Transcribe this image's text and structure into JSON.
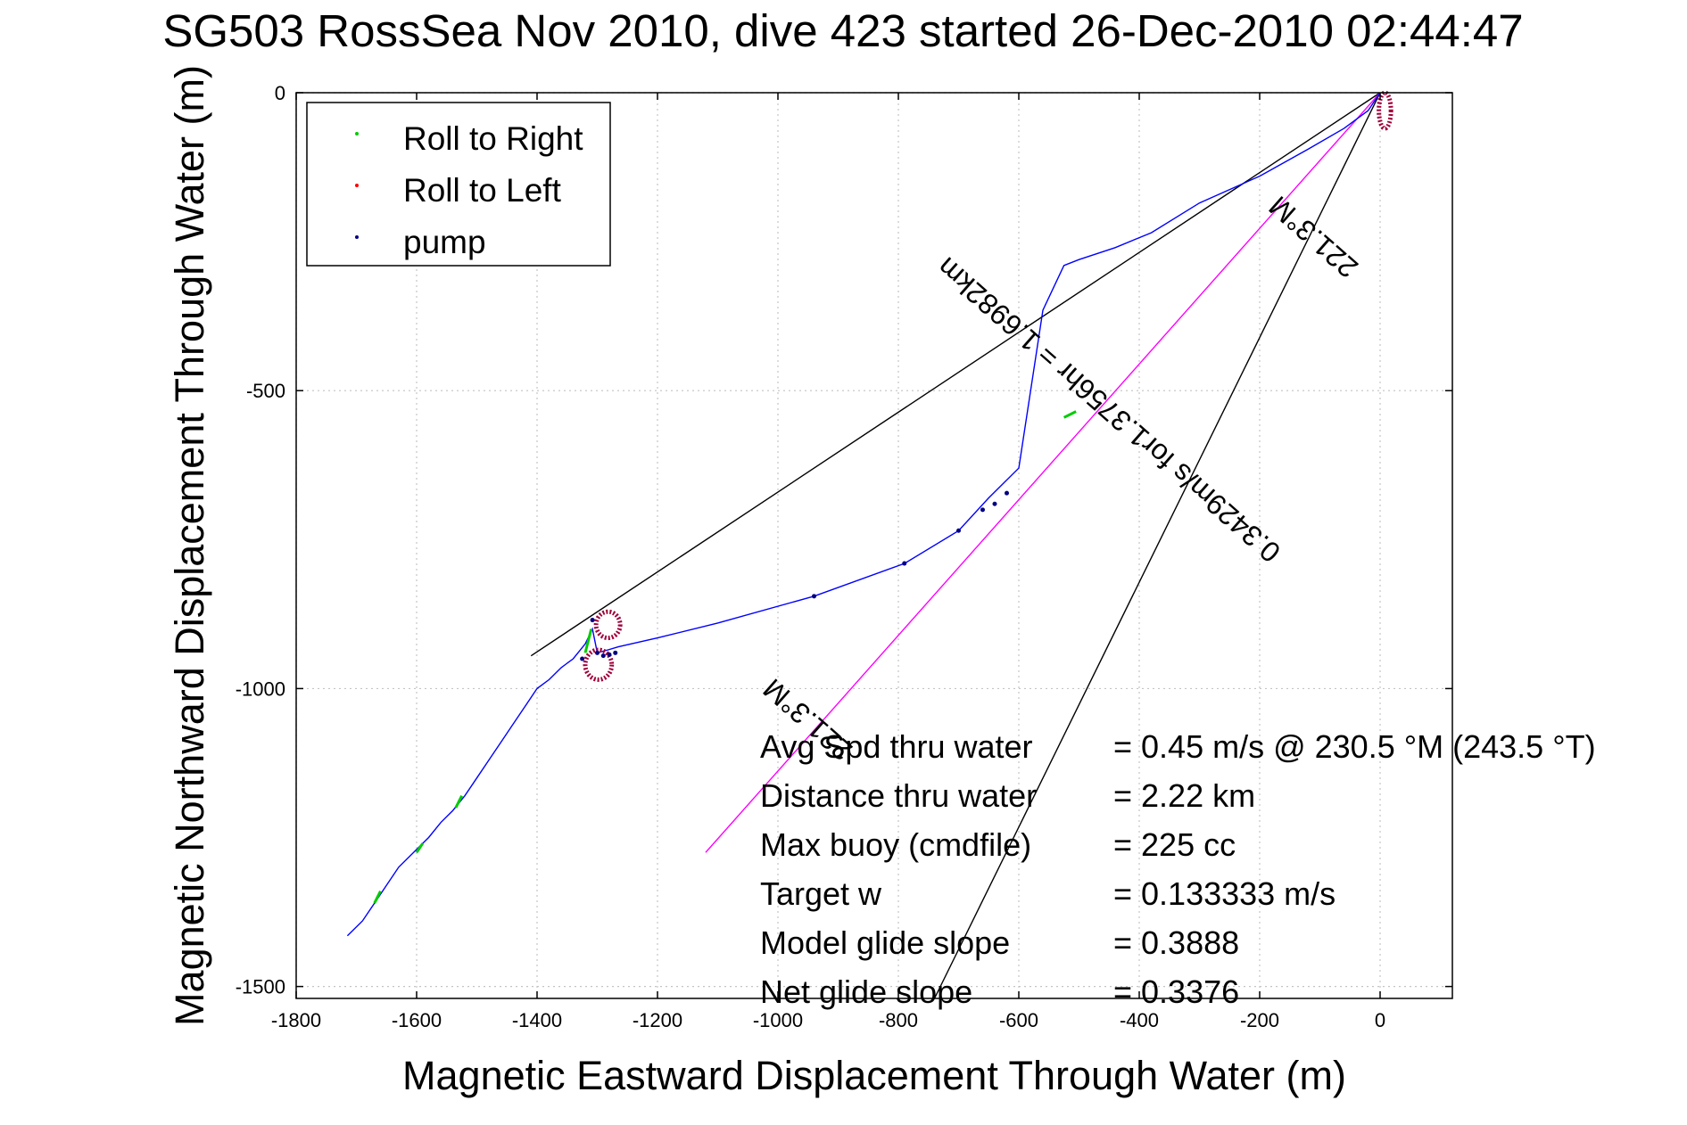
{
  "chart_data": {
    "type": "scatter",
    "title": "SG503 RossSea Nov 2010, dive 423 started 26-Dec-2010 02:44:47",
    "xlabel": "Magnetic Eastward Displacement Through Water (m)",
    "ylabel": "Magnetic Northward Displacement Through Water (m)",
    "xlim": [
      -1800,
      120
    ],
    "ylim": [
      -1520,
      0
    ],
    "xticks": [
      -1800,
      -1600,
      -1400,
      -1200,
      -1000,
      -800,
      -600,
      -400,
      -200,
      0
    ],
    "yticks": [
      0,
      -500,
      -1000,
      -1500
    ],
    "grid": true,
    "legend": {
      "position": "top-left",
      "entries": [
        {
          "label": "Roll to Right",
          "color": "#00cc00"
        },
        {
          "label": "Roll to Left",
          "color": "#ff0000"
        },
        {
          "label": "pump",
          "color": "#000080"
        }
      ]
    },
    "colors": {
      "track": "#0000ff",
      "heading_line": "#ff00ff",
      "guide_lines": "#000000"
    },
    "track": [
      [
        0,
        0
      ],
      [
        -20,
        -30
      ],
      [
        -60,
        -60
      ],
      [
        -120,
        -95
      ],
      [
        -200,
        -140
      ],
      [
        -300,
        -185
      ],
      [
        -380,
        -235
      ],
      [
        -440,
        -260
      ],
      [
        -500,
        -280
      ],
      [
        -525,
        -290
      ],
      [
        -560,
        -365
      ],
      [
        -600,
        -630
      ],
      [
        -650,
        -680
      ],
      [
        -700,
        -735
      ],
      [
        -790,
        -790
      ],
      [
        -940,
        -845
      ],
      [
        -1100,
        -890
      ],
      [
        -1200,
        -915
      ],
      [
        -1265,
        -930
      ],
      [
        -1282,
        -935
      ],
      [
        -1300,
        -940
      ],
      [
        -1308,
        -900
      ],
      [
        -1320,
        -925
      ],
      [
        -1340,
        -950
      ],
      [
        -1360,
        -965
      ],
      [
        -1380,
        -985
      ],
      [
        -1400,
        -1000
      ],
      [
        -1420,
        -1030
      ],
      [
        -1440,
        -1060
      ],
      [
        -1460,
        -1090
      ],
      [
        -1480,
        -1120
      ],
      [
        -1500,
        -1150
      ],
      [
        -1520,
        -1180
      ],
      [
        -1540,
        -1205
      ],
      [
        -1560,
        -1225
      ],
      [
        -1580,
        -1250
      ],
      [
        -1600,
        -1270
      ],
      [
        -1630,
        -1300
      ],
      [
        -1650,
        -1330
      ],
      [
        -1670,
        -1360
      ],
      [
        -1690,
        -1390
      ],
      [
        -1715,
        -1415
      ]
    ],
    "pump_points": [
      [
        -1300,
        -940
      ],
      [
        -1308,
        -885
      ],
      [
        -1290,
        -945
      ],
      [
        -1280,
        -943
      ],
      [
        -1270,
        -940
      ],
      [
        -940,
        -845
      ],
      [
        -790,
        -790
      ],
      [
        -700,
        -735
      ],
      [
        -660,
        -700
      ],
      [
        -640,
        -690
      ],
      [
        -620,
        -672
      ],
      [
        -1325,
        -950
      ]
    ],
    "roll_left_loops": [
      {
        "cx": 8,
        "cy": -30,
        "rx": 10,
        "ry": 30
      },
      {
        "cx": -1282,
        "cy": -893,
        "rx": 20,
        "ry": 22
      },
      {
        "cx": -1298,
        "cy": -960,
        "rx": 22,
        "ry": 25
      }
    ],
    "roll_right_segments": [
      [
        [
          -505,
          -535
        ],
        [
          -525,
          -545
        ]
      ],
      [
        [
          -1310,
          -900
        ],
        [
          -1320,
          -940
        ]
      ],
      [
        [
          -1525,
          -1180
        ],
        [
          -1535,
          -1200
        ]
      ],
      [
        [
          -1590,
          -1260
        ],
        [
          -1600,
          -1275
        ]
      ],
      [
        [
          -1660,
          -1340
        ],
        [
          -1670,
          -1360
        ]
      ]
    ],
    "heading_line": {
      "from": [
        0,
        0
      ],
      "to": [
        -1120,
        -1275
      ]
    },
    "guide_lines": [
      {
        "from": [
          0,
          0
        ],
        "to": [
          -1410,
          -945
        ]
      },
      {
        "from": [
          0,
          0
        ],
        "to": [
          -740,
          -1520
        ]
      }
    ],
    "annotations": [
      {
        "text": "221.3°M",
        "at": [
          -100,
          -230
        ],
        "angle_deg": 221.3
      },
      {
        "text": "0.3429m/s for1.3756hr = 1.6982km",
        "at": [
          -440,
          -520
        ],
        "angle_deg": 221.3
      },
      {
        "text": "221.3°M",
        "at": [
          -940,
          -1040
        ],
        "angle_deg": 221.3
      }
    ],
    "stats": [
      {
        "label": "Avg Spd thru water",
        "value": "=  0.45 m/s @ 230.5 °M (243.5 °T)"
      },
      {
        "label": "Distance thru water",
        "value": "=  2.22 km"
      },
      {
        "label": "Max buoy (cmdfile)",
        "value": "= 225 cc"
      },
      {
        "label": "Target w",
        "value": "= 0.133333 m/s"
      },
      {
        "label": "Model glide slope",
        "value": "= 0.3888"
      },
      {
        "label": "Net glide slope",
        "value": "= 0.3376"
      }
    ]
  }
}
